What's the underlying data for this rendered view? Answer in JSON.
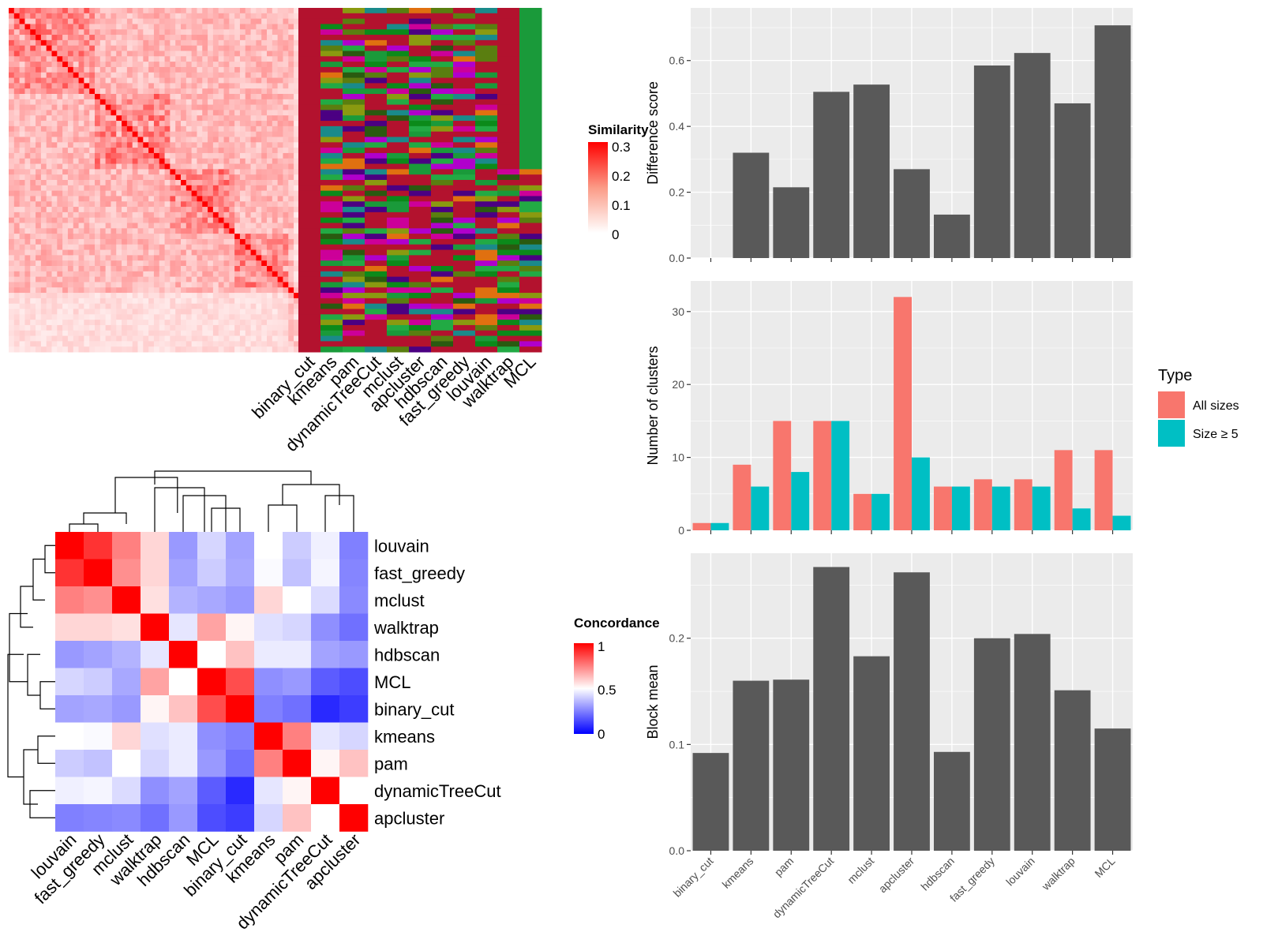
{
  "methods_top": [
    "binary_cut",
    "kmeans",
    "pam",
    "dynamicTreeCut",
    "mclust",
    "apcluster",
    "hdbscan",
    "fast_greedy",
    "louvain",
    "walktrap",
    "MCL"
  ],
  "similarity_legend": {
    "title": "Similarity",
    "ticks": [
      "0.3",
      "0.2",
      "0.1",
      "0"
    ]
  },
  "concordance_legend": {
    "title": "Concordance",
    "ticks": [
      "1",
      "0.5",
      "0"
    ]
  },
  "type_legend": {
    "title": "Type",
    "items": [
      {
        "label": "All sizes",
        "color": "#F8766D"
      },
      {
        "label": "Size ≥ 5",
        "color": "#00BFC4"
      }
    ]
  },
  "chart_data": [
    {
      "type": "heatmap",
      "name": "similarity matrix with cluster assignments",
      "ylabel": "",
      "xlabel": "",
      "columns": [
        "binary_cut",
        "kmeans",
        "pam",
        "dynamicTreeCut",
        "mclust",
        "apcluster",
        "hdbscan",
        "fast_greedy",
        "louvain",
        "walktrap",
        "MCL"
      ],
      "value_range": [
        0,
        0.3
      ]
    },
    {
      "type": "heatmap",
      "name": "concordance",
      "rows": [
        "louvain",
        "fast_greedy",
        "mclust",
        "walktrap",
        "hdbscan",
        "MCL",
        "binary_cut",
        "kmeans",
        "pam",
        "dynamicTreeCut",
        "apcluster"
      ],
      "columns": [
        "louvain",
        "fast_greedy",
        "mclust",
        "walktrap",
        "hdbscan",
        "MCL",
        "binary_cut",
        "kmeans",
        "pam",
        "dynamicTreeCut",
        "apcluster"
      ],
      "values": [
        [
          1.0,
          0.9,
          0.75,
          0.58,
          0.3,
          0.42,
          0.32,
          0.5,
          0.4,
          0.47,
          0.25
        ],
        [
          0.9,
          1.0,
          0.72,
          0.58,
          0.32,
          0.4,
          0.33,
          0.49,
          0.38,
          0.48,
          0.26
        ],
        [
          0.75,
          0.72,
          1.0,
          0.56,
          0.35,
          0.33,
          0.3,
          0.58,
          0.5,
          0.43,
          0.27
        ],
        [
          0.58,
          0.58,
          0.56,
          1.0,
          0.45,
          0.68,
          0.52,
          0.44,
          0.42,
          0.28,
          0.22
        ],
        [
          0.3,
          0.32,
          0.35,
          0.45,
          1.0,
          0.5,
          0.62,
          0.46,
          0.46,
          0.32,
          0.3
        ],
        [
          0.42,
          0.4,
          0.33,
          0.68,
          0.5,
          1.0,
          0.85,
          0.28,
          0.3,
          0.18,
          0.15
        ],
        [
          0.32,
          0.33,
          0.3,
          0.52,
          0.62,
          0.85,
          1.0,
          0.25,
          0.22,
          0.08,
          0.12
        ],
        [
          0.5,
          0.49,
          0.58,
          0.44,
          0.46,
          0.28,
          0.25,
          1.0,
          0.75,
          0.45,
          0.42
        ],
        [
          0.4,
          0.38,
          0.5,
          0.42,
          0.46,
          0.3,
          0.22,
          0.75,
          1.0,
          0.52,
          0.62
        ],
        [
          0.47,
          0.48,
          0.43,
          0.28,
          0.32,
          0.18,
          0.08,
          0.45,
          0.52,
          1.0,
          0.5
        ],
        [
          0.25,
          0.26,
          0.27,
          0.22,
          0.3,
          0.15,
          0.12,
          0.42,
          0.62,
          0.5,
          1.0
        ]
      ],
      "value_range": [
        0,
        1
      ]
    },
    {
      "type": "bar",
      "categories": [
        "binary_cut",
        "kmeans",
        "pam",
        "dynamicTreeCut",
        "mclust",
        "apcluster",
        "hdbscan",
        "fast_greedy",
        "louvain",
        "walktrap",
        "MCL"
      ],
      "values": [
        0,
        0.32,
        0.215,
        0.505,
        0.527,
        0.27,
        0.132,
        0.585,
        0.623,
        0.47,
        0.707
      ],
      "ylabel": "Difference score",
      "ylim": [
        0,
        0.76
      ],
      "yticks": [
        "0.0",
        "0.2",
        "0.4",
        "0.6"
      ]
    },
    {
      "type": "bar",
      "categories": [
        "binary_cut",
        "kmeans",
        "pam",
        "dynamicTreeCut",
        "mclust",
        "apcluster",
        "hdbscan",
        "fast_greedy",
        "louvain",
        "walktrap",
        "MCL"
      ],
      "series": [
        {
          "name": "All sizes",
          "values": [
            1,
            9,
            15,
            15,
            5,
            32,
            6,
            7,
            7,
            11,
            11
          ]
        },
        {
          "name": "Size ≥ 5",
          "values": [
            1,
            6,
            8,
            15,
            5,
            10,
            6,
            6,
            6,
            3,
            2
          ]
        }
      ],
      "ylabel": "Number of clusters",
      "ylim": [
        0,
        34.2
      ],
      "yticks": [
        "0",
        "10",
        "20",
        "30"
      ],
      "legend": "right"
    },
    {
      "type": "bar",
      "categories": [
        "binary_cut",
        "kmeans",
        "pam",
        "dynamicTreeCut",
        "mclust",
        "apcluster",
        "hdbscan",
        "fast_greedy",
        "louvain",
        "walktrap",
        "MCL"
      ],
      "values": [
        0.092,
        0.16,
        0.161,
        0.267,
        0.183,
        0.262,
        0.093,
        0.2,
        0.204,
        0.151,
        0.115
      ],
      "ylabel": "Block mean",
      "ylim": [
        0,
        0.28
      ],
      "yticks": [
        "0.0",
        "0.1",
        "0.2"
      ]
    }
  ]
}
